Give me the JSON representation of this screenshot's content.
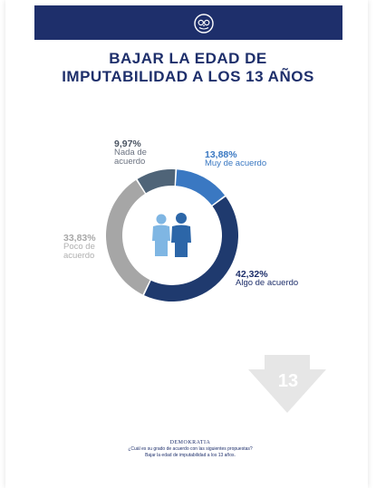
{
  "title": {
    "line1": "BAJAR LA EDAD DE",
    "line2": "IMPUTABILIDAD A LOS 13 AÑOS"
  },
  "colors": {
    "navy": "#1e2f6b",
    "muy": "#3a78c2",
    "algo": "#1f3a6e",
    "poco": "#a6a6a6",
    "nada": "#4f6478",
    "person_left": "#7fb6e3",
    "person_right": "#2c66a8",
    "arrow": "#e6e6e6"
  },
  "chart_data": {
    "type": "pie",
    "donut": true,
    "slices": [
      {
        "label": "Muy de acuerdo",
        "value": 13.88,
        "pct_label": "13,88%"
      },
      {
        "label": "Algo de acuerdo",
        "value": 42.32,
        "pct_label": "42,32%"
      },
      {
        "label": "Poco de acuerdo",
        "value": 33.83,
        "pct_label": "33,83%"
      },
      {
        "label": "Nada de acuerdo",
        "value": 9.97,
        "pct_label": "9,97%"
      }
    ]
  },
  "labels": {
    "nada": {
      "pct": "9,97%",
      "line1": "Nada de",
      "line2": "acuerdo"
    },
    "muy": {
      "pct": "13,88%",
      "line1": "Muy de acuerdo"
    },
    "algo": {
      "pct": "42,32%",
      "line1": "Algo de acuerdo"
    },
    "poco": {
      "pct": "33,83%",
      "line1": "Poco de",
      "line2": "acuerdo"
    }
  },
  "arrow_number": "13",
  "footer": {
    "brand": "DEMOKRATIA",
    "question": "¿Cuál es su grado de acuerdo con las siguientes propuestas?",
    "subquestion": "Bajar la edad de imputabilidad a los 13 años."
  }
}
